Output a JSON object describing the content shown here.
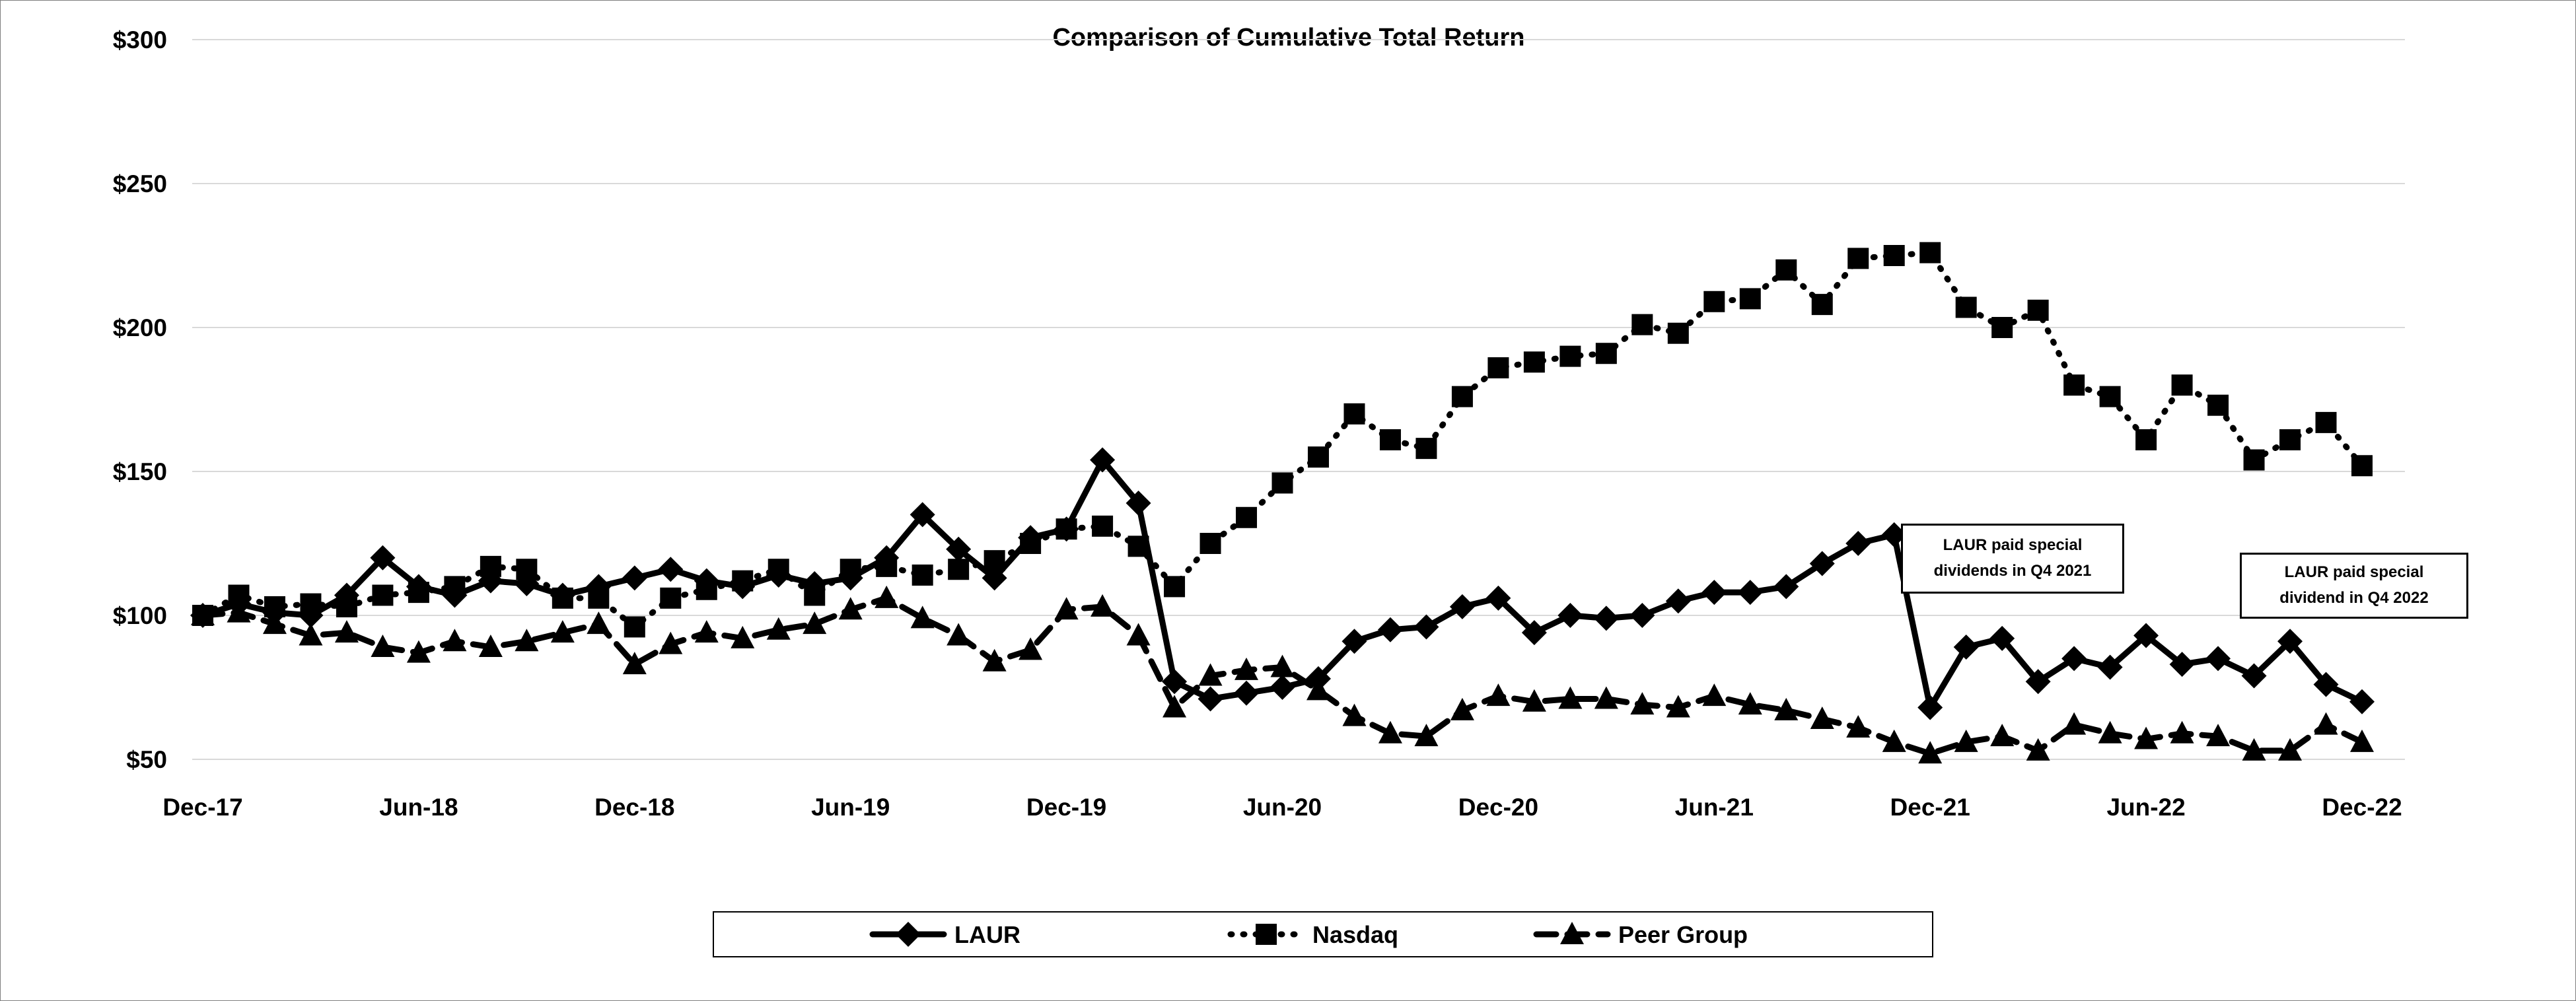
{
  "title": "Comparison of Cumulative Total Return",
  "accent_colors": {
    "series": "#000000",
    "gridline": "#d9d9d9",
    "background": "#ffffff"
  },
  "y_axis": {
    "tick_labels": [
      "$300",
      "$250",
      "$200",
      "$150",
      "$100",
      "$50"
    ]
  },
  "x_axis": {
    "tick_labels": [
      "Dec-17",
      "Jun-18",
      "Dec-18",
      "Jun-19",
      "Dec-19",
      "Jun-20",
      "Dec-20",
      "Jun-21",
      "Dec-21",
      "Jun-22",
      "Dec-22"
    ]
  },
  "legend": {
    "items": [
      {
        "label": "LAUR",
        "marker": "diamond",
        "line": "solid"
      },
      {
        "label": "Nasdaq",
        "marker": "square",
        "line": "dotted"
      },
      {
        "label": "Peer Group",
        "marker": "triangle",
        "line": "dashed"
      }
    ]
  },
  "annotations": [
    {
      "line1": "LAUR paid special",
      "line2": "dividends in Q4 2021"
    },
    {
      "line1": "LAUR paid special",
      "line2": "dividend in Q4 2022"
    }
  ],
  "chart_data": {
    "type": "line",
    "title": "Comparison of Cumulative Total Return",
    "xlabel": "",
    "ylabel": "",
    "ylim": [
      50,
      300
    ],
    "yticks": [
      300,
      250,
      200,
      150,
      100,
      50
    ],
    "ytick_labels": [
      "$300",
      "$250",
      "$200",
      "$150",
      "$100",
      "$50"
    ],
    "grid": "horizontal",
    "legend_position": "bottom",
    "x": [
      "Dec-17",
      "Jan-18",
      "Feb-18",
      "Mar-18",
      "Apr-18",
      "May-18",
      "Jun-18",
      "Jul-18",
      "Aug-18",
      "Sep-18",
      "Oct-18",
      "Nov-18",
      "Dec-18",
      "Jan-19",
      "Feb-19",
      "Mar-19",
      "Apr-19",
      "May-19",
      "Jun-19",
      "Jul-19",
      "Aug-19",
      "Sep-19",
      "Oct-19",
      "Nov-19",
      "Dec-19",
      "Jan-20",
      "Feb-20",
      "Mar-20",
      "Apr-20",
      "May-20",
      "Jun-20",
      "Jul-20",
      "Aug-20",
      "Sep-20",
      "Oct-20",
      "Nov-20",
      "Dec-20",
      "Jan-21",
      "Feb-21",
      "Mar-21",
      "Apr-21",
      "May-21",
      "Jun-21",
      "Jul-21",
      "Aug-21",
      "Sep-21",
      "Oct-21",
      "Nov-21",
      "Dec-21",
      "Jan-22",
      "Feb-22",
      "Mar-22",
      "Apr-22",
      "May-22",
      "Jun-22",
      "Jul-22",
      "Aug-22",
      "Sep-22",
      "Oct-22",
      "Nov-22",
      "Dec-22"
    ],
    "x_tick_every": 6,
    "series": [
      {
        "name": "LAUR",
        "line": "solid",
        "marker": "diamond",
        "values": [
          100,
          104,
          101,
          100,
          107,
          120,
          110,
          107,
          112,
          111,
          107,
          110,
          113,
          116,
          112,
          110,
          114,
          111,
          113,
          120,
          135,
          123,
          113,
          127,
          130,
          154,
          139,
          77,
          71,
          73,
          75,
          78,
          91,
          95,
          96,
          103,
          106,
          94,
          100,
          99,
          100,
          105,
          108,
          108,
          110,
          118,
          125,
          128,
          68,
          89,
          92,
          77,
          85,
          82,
          93,
          83,
          85,
          79,
          91,
          76,
          70
        ]
      },
      {
        "name": "Nasdaq",
        "line": "dotted",
        "marker": "square",
        "values": [
          100,
          107,
          103,
          104,
          103,
          107,
          108,
          110,
          117,
          116,
          106,
          106,
          96,
          106,
          109,
          112,
          116,
          107,
          116,
          117,
          114,
          116,
          119,
          125,
          130,
          131,
          124,
          110,
          125,
          134,
          146,
          155,
          170,
          161,
          158,
          176,
          186,
          188,
          190,
          191,
          201,
          198,
          209,
          210,
          220,
          208,
          224,
          225,
          226,
          207,
          200,
          206,
          180,
          176,
          161,
          180,
          173,
          154,
          161,
          167,
          152
        ]
      },
      {
        "name": "Peer Group",
        "line": "dashed",
        "marker": "triangle",
        "values": [
          100,
          101,
          97,
          93,
          94,
          89,
          87,
          91,
          89,
          91,
          94,
          97,
          83,
          90,
          94,
          92,
          95,
          97,
          102,
          106,
          99,
          93,
          84,
          88,
          102,
          103,
          93,
          68,
          79,
          81,
          82,
          74,
          65,
          59,
          58,
          67,
          72,
          70,
          71,
          71,
          69,
          68,
          72,
          69,
          67,
          64,
          61,
          56,
          52,
          56,
          58,
          53,
          62,
          59,
          57,
          59,
          58,
          53,
          53,
          62,
          56
        ]
      }
    ]
  }
}
